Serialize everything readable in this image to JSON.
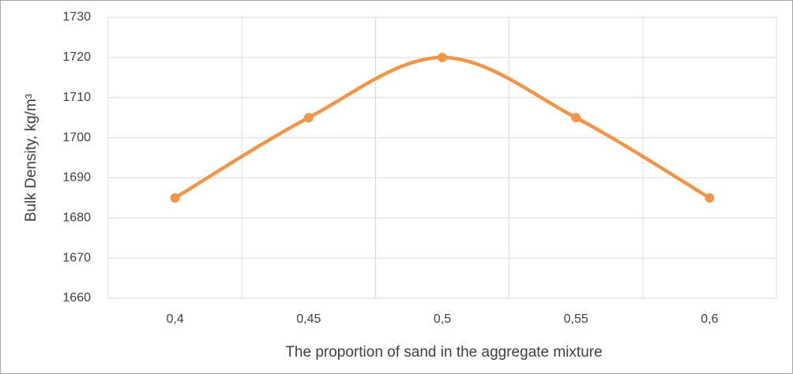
{
  "chart_data": {
    "type": "line",
    "x_label": "The proportion of sand in the aggregate mixture",
    "y_label": "Bulk Density, kg/m³",
    "categories": [
      "0,4",
      "0,45",
      "0,5",
      "0,55",
      "0,6"
    ],
    "series": [
      {
        "name": "Bulk Density",
        "color": "#f0964b",
        "values": [
          1685,
          1705,
          1720,
          1705,
          1685
        ]
      }
    ],
    "ylim": [
      1660,
      1730
    ],
    "yticks": [
      1660,
      1670,
      1680,
      1690,
      1700,
      1710,
      1720,
      1730
    ],
    "grid": true,
    "smooth": true,
    "markers": true
  }
}
